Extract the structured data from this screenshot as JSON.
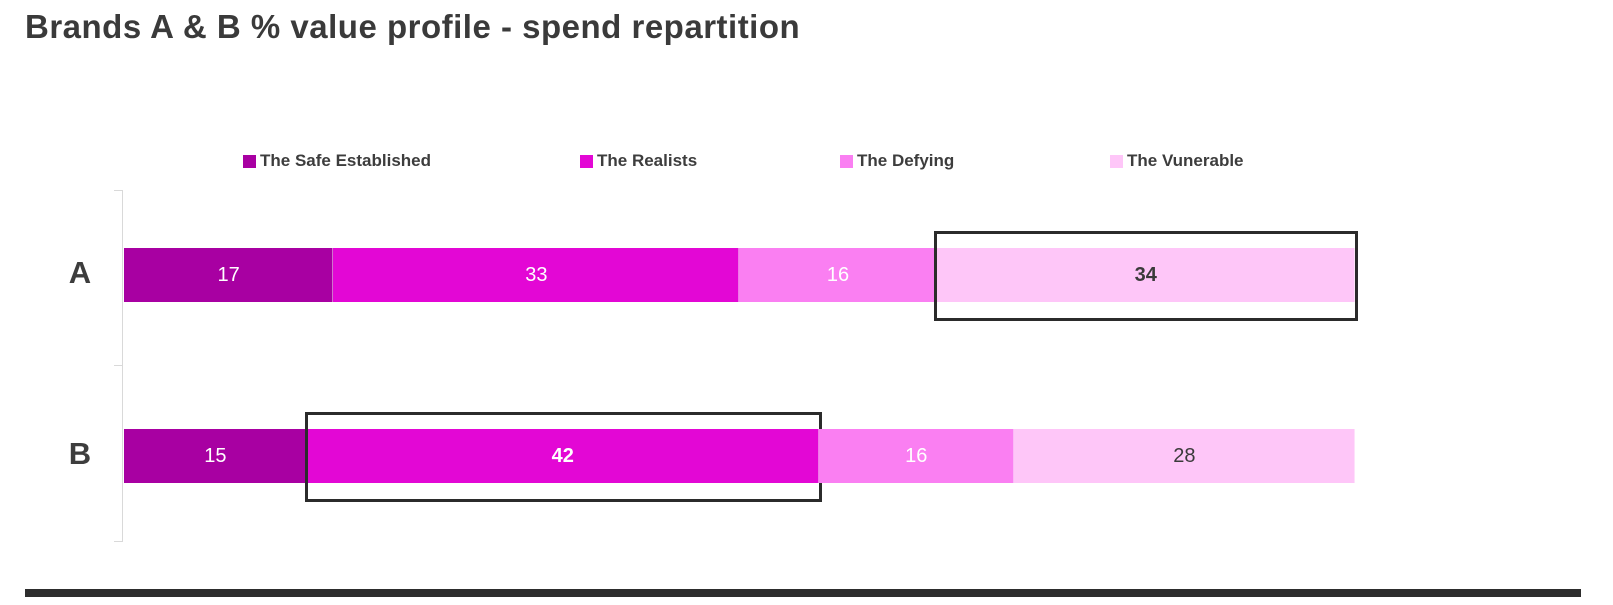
{
  "chart_data": {
    "type": "bar",
    "orientation": "horizontal",
    "stacked": true,
    "normalized_to_100_percent": true,
    "title": "Brands A & B % value profile - spend repartition",
    "categories": [
      "A",
      "B"
    ],
    "series": [
      {
        "name": "The Safe Established",
        "color": "#a800a2",
        "label_color": "#ffffff",
        "values": [
          17,
          15
        ]
      },
      {
        "name": "The Realists",
        "color": "#e307d5",
        "label_color": "#ffffff",
        "values": [
          33,
          42
        ]
      },
      {
        "name": "The Defying",
        "color": "#fa7ff2",
        "label_color": "#ffffff",
        "values": [
          16,
          16
        ]
      },
      {
        "name": "The Vunerable",
        "color": "#fec6f8",
        "label_color": "#3a3a3a",
        "values": [
          34,
          28
        ]
      }
    ],
    "legend_position": "top",
    "grid": false,
    "axis_color": "#d9d9d9",
    "annotations": [
      {
        "type": "highlight-box",
        "category": "A",
        "series": "The Vunerable",
        "value": 34
      },
      {
        "type": "highlight-box",
        "category": "B",
        "series": "The Realists",
        "value": 42
      }
    ],
    "colors": {
      "title_text": "#3a3a3a",
      "category_text": "#3d3d3d",
      "legend_text": "#3d3d3d",
      "highlight_border": "#2b2b2b",
      "bottom_rule": "#2d2d2d"
    }
  }
}
